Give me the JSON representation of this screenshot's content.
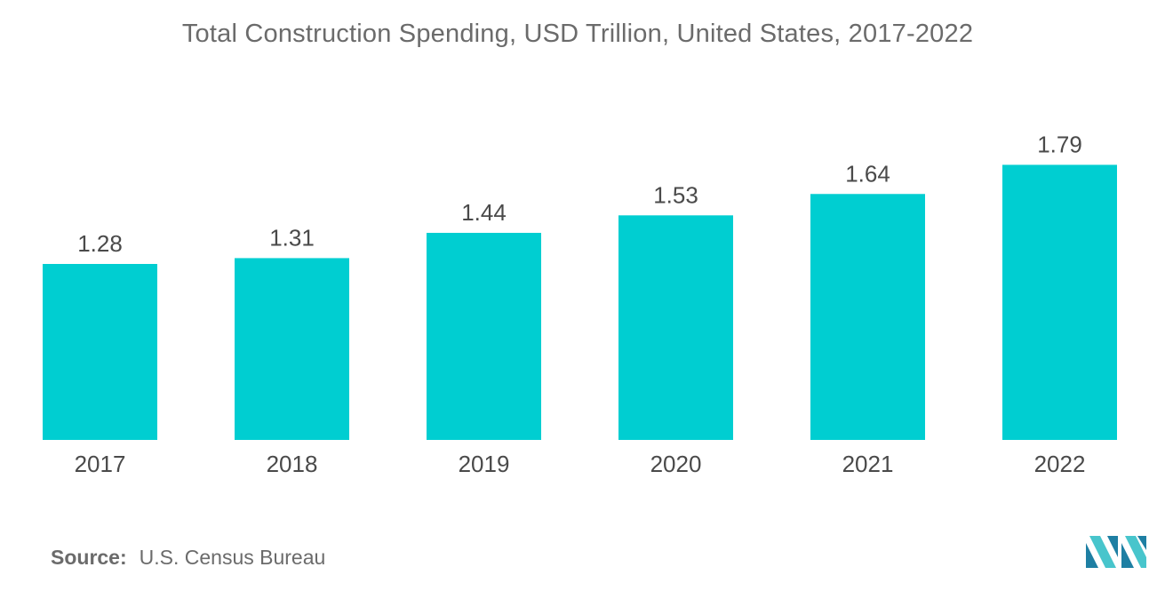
{
  "chart_data": {
    "type": "bar",
    "title": "Total Construction Spending, USD Trillion, United States, 2017-2022",
    "categories": [
      "2017",
      "2018",
      "2019",
      "2020",
      "2021",
      "2022"
    ],
    "values": [
      1.28,
      1.31,
      1.44,
      1.53,
      1.64,
      1.79
    ],
    "value_labels": [
      "1.28",
      "1.31",
      "1.44",
      "1.53",
      "1.64",
      "1.79"
    ],
    "xlabel": "",
    "ylabel": "",
    "grid": false,
    "legend": "none",
    "bar_color": "#00CED1"
  },
  "source": {
    "label": "Source:",
    "text": "U.S. Census Bureau"
  },
  "logo": {
    "icon": "mordor-intelligence-logo-icon",
    "colors": [
      "#1e7fa3",
      "#48c5cc"
    ]
  }
}
